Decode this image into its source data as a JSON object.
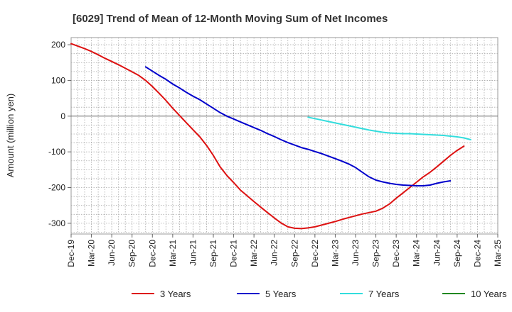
{
  "chart_data": {
    "type": "line",
    "title": "[6029]  Trend of Mean of 12-Month Moving Sum of Net Incomes",
    "xlabel": "",
    "ylabel": "Amount (million yen)",
    "ylim": [
      -330,
      220
    ],
    "yticks": [
      -300,
      -200,
      -100,
      0,
      100,
      200
    ],
    "x_ticks": [
      "Dec-19",
      "Mar-20",
      "Jun-20",
      "Sep-20",
      "Dec-20",
      "Mar-21",
      "Jun-21",
      "Sep-21",
      "Dec-21",
      "Mar-22",
      "Jun-22",
      "Sep-22",
      "Dec-22",
      "Mar-23",
      "Jun-23",
      "Sep-23",
      "Dec-23",
      "Mar-24",
      "Jun-24",
      "Sep-24",
      "Dec-24",
      "Mar-25"
    ],
    "grid": true,
    "legend_position": "bottom",
    "series": [
      {
        "name": "3 Years",
        "color": "#dd1111",
        "start": "Dec-19",
        "values": [
          203,
          196,
          189,
          181,
          172,
          162,
          153,
          144,
          134,
          124,
          114,
          100,
          83,
          64,
          44,
          22,
          2,
          -18,
          -38,
          -58,
          -82,
          -110,
          -142,
          -166,
          -186,
          -207,
          -223,
          -239,
          -255,
          -270,
          -285,
          -299,
          -310,
          -314,
          -315,
          -313,
          -310,
          -305,
          -300,
          -295,
          -289,
          -284,
          -279,
          -274,
          -270,
          -266,
          -258,
          -246,
          -230,
          -215,
          -200,
          -185,
          -170,
          -157,
          -142,
          -126,
          -110,
          -96,
          -84
        ]
      },
      {
        "name": "5 Years",
        "color": "#0000cc",
        "start": "Nov-20",
        "values": [
          138,
          126,
          114,
          103,
          90,
          79,
          67,
          56,
          46,
          34,
          22,
          10,
          0,
          -8,
          -16,
          -24,
          -32,
          -40,
          -49,
          -57,
          -66,
          -74,
          -81,
          -88,
          -93,
          -99,
          -105,
          -112,
          -119,
          -126,
          -134,
          -144,
          -157,
          -170,
          -179,
          -184,
          -188,
          -191,
          -193,
          -194,
          -195,
          -195,
          -193,
          -188,
          -184,
          -181
        ]
      },
      {
        "name": "7 Years",
        "color": "#33dddd",
        "start": "Nov-22",
        "values": [
          -3,
          -7,
          -11,
          -15,
          -19,
          -23,
          -27,
          -31,
          -35,
          -39,
          -42,
          -45,
          -47,
          -48,
          -49,
          -49,
          -50,
          -51,
          -52,
          -53,
          -54,
          -56,
          -58,
          -61,
          -66
        ]
      },
      {
        "name": "10 Years",
        "color": "#228822",
        "start": "",
        "values": []
      }
    ]
  }
}
